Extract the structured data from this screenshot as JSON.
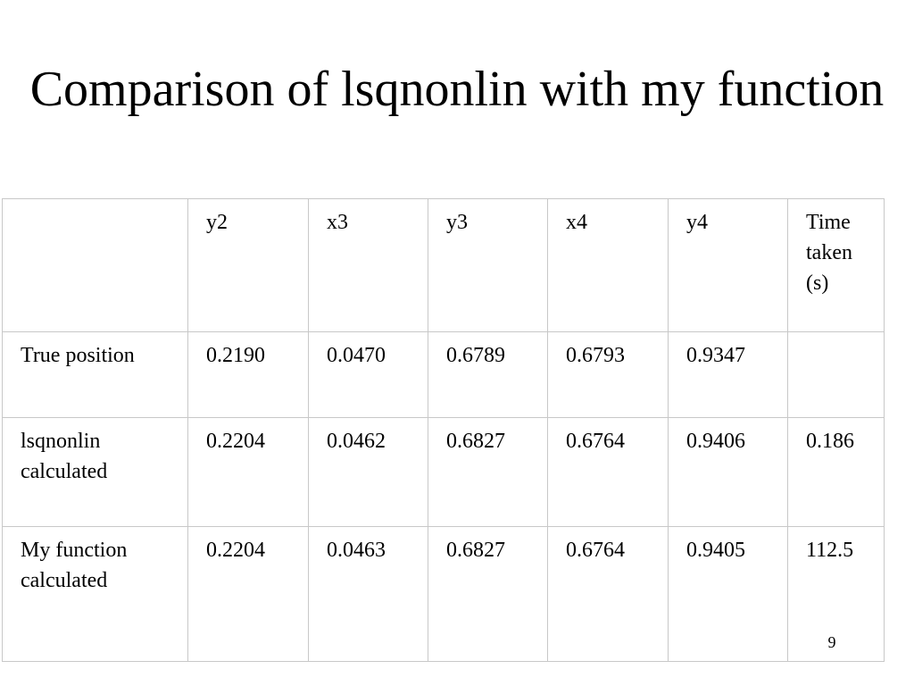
{
  "slide": {
    "title": "Comparison of lsqnonlin with my function",
    "page_number": "9"
  },
  "table": {
    "headers": [
      "",
      "y2",
      "x3",
      "y3",
      "x4",
      "y4",
      "Time taken (s)"
    ],
    "rows": [
      {
        "label": "True position",
        "cells": [
          "0.2190",
          "0.0470",
          "0.6789",
          "0.6793",
          "0.9347",
          ""
        ]
      },
      {
        "label": "lsqnonlin calculated",
        "cells": [
          "0.2204",
          "0.0462",
          "0.6827",
          "0.6764",
          "0.9406",
          "0.186"
        ]
      },
      {
        "label": "My function calculated",
        "cells": [
          "0.2204",
          "0.0463",
          "0.6827",
          "0.6764",
          "0.9405",
          "112.5"
        ]
      }
    ]
  }
}
